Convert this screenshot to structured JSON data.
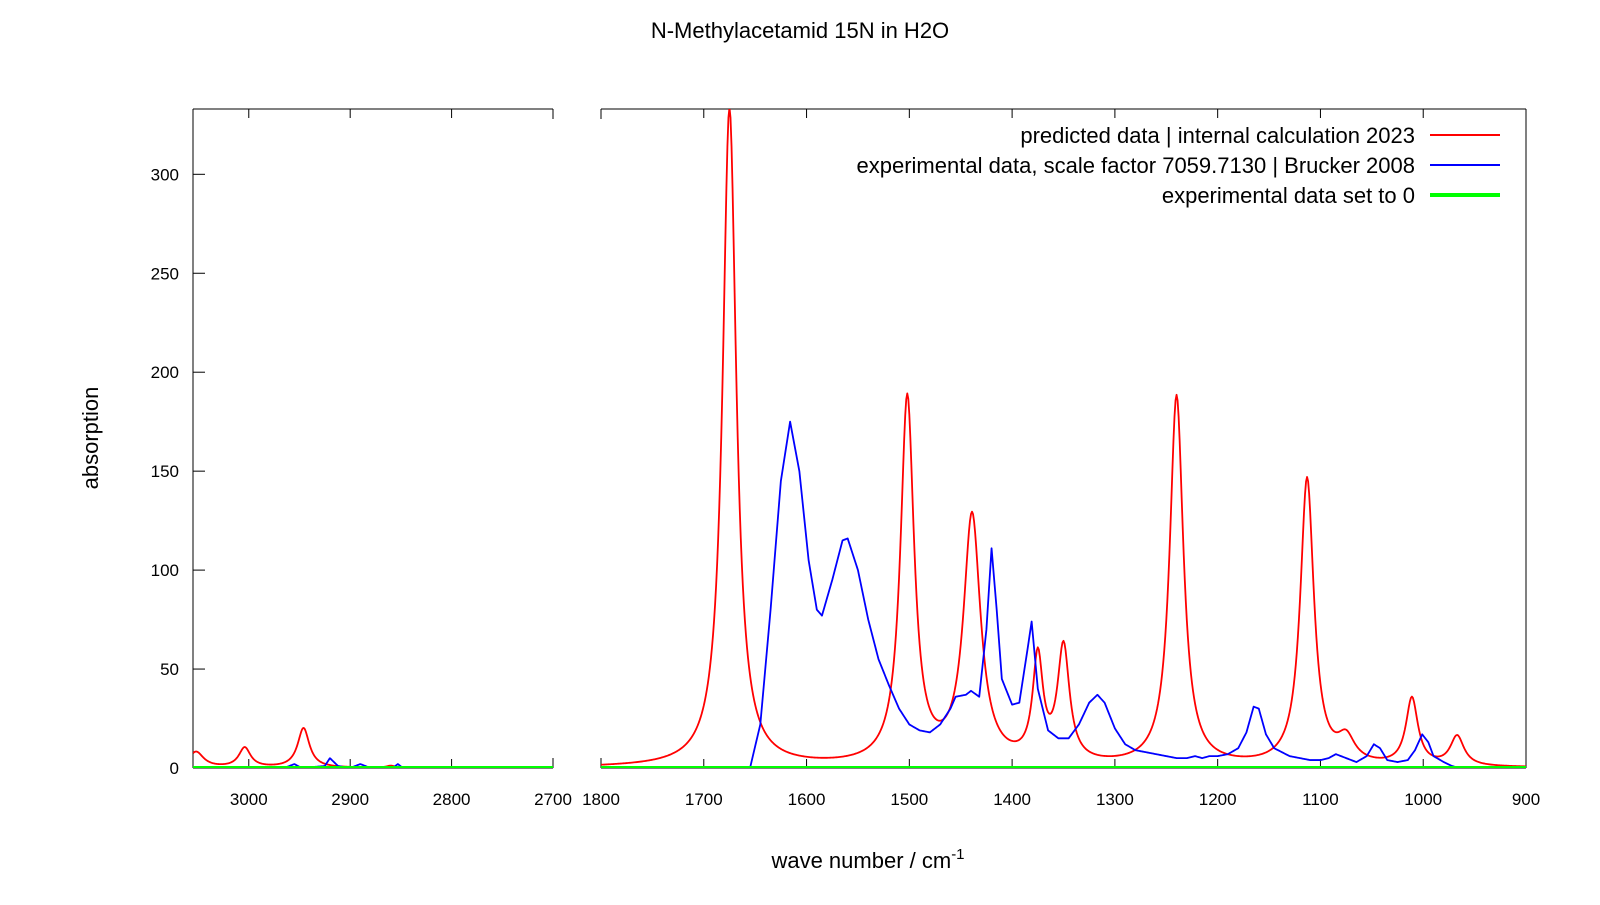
{
  "chart_data": {
    "type": "line",
    "title": "N-Methylacetamid 15N in H2O",
    "xlabel": "wave number / cm",
    "xlabel_superscript": "-1",
    "ylabel": "absorption",
    "x_axis_reversed": true,
    "x_axis_broken": true,
    "panels": [
      {
        "xlim": [
          3055,
          2700
        ],
        "xticks": [
          "3000",
          "2900",
          "2800",
          "2700"
        ]
      },
      {
        "xlim": [
          1800,
          900
        ],
        "xticks": [
          "1800",
          "1700",
          "1600",
          "1500",
          "1400",
          "1300",
          "1200",
          "1100",
          "1000",
          "900"
        ]
      }
    ],
    "ylim": [
      0,
      333
    ],
    "yticks": [
      "0",
      "50",
      "100",
      "150",
      "200",
      "250",
      "300"
    ],
    "grid": false,
    "legend_position": "top-right",
    "series": [
      {
        "name": "predicted data | internal calculation 2023",
        "color": "#ff0000",
        "peaks": [
          {
            "x": 3052,
            "y": 8,
            "w": 9
          },
          {
            "x": 3004,
            "y": 10,
            "w": 7
          },
          {
            "x": 2946,
            "y": 20,
            "w": 7
          },
          {
            "x": 2860,
            "y": 1,
            "w": 5
          },
          {
            "x": 1675,
            "y": 333,
            "w": 8
          },
          {
            "x": 1502,
            "y": 185,
            "w": 8
          },
          {
            "x": 1439,
            "y": 125,
            "w": 10
          },
          {
            "x": 1375,
            "y": 52,
            "w": 6
          },
          {
            "x": 1350,
            "y": 58,
            "w": 7
          },
          {
            "x": 1240,
            "y": 187,
            "w": 8
          },
          {
            "x": 1113,
            "y": 145,
            "w": 8
          },
          {
            "x": 1075,
            "y": 12,
            "w": 10
          },
          {
            "x": 1011,
            "y": 34,
            "w": 7
          },
          {
            "x": 967,
            "y": 15,
            "w": 8
          }
        ]
      },
      {
        "name": "experimental data, scale factor 7059.7130 | Brucker 2008",
        "color": "#0000ff",
        "points": [
          [
            2965,
            0
          ],
          [
            2955,
            2
          ],
          [
            2948,
            0
          ],
          [
            2925,
            1
          ],
          [
            2920,
            5
          ],
          [
            2912,
            1
          ],
          [
            2900,
            0
          ],
          [
            2890,
            2
          ],
          [
            2880,
            0
          ],
          [
            2858,
            0
          ],
          [
            2853,
            2
          ],
          [
            2848,
            0
          ],
          [
            1655,
            0
          ],
          [
            1645,
            22
          ],
          [
            1635,
            80
          ],
          [
            1625,
            145
          ],
          [
            1616,
            175
          ],
          [
            1607,
            150
          ],
          [
            1598,
            105
          ],
          [
            1590,
            80
          ],
          [
            1585,
            77
          ],
          [
            1575,
            95
          ],
          [
            1565,
            115
          ],
          [
            1560,
            116
          ],
          [
            1550,
            100
          ],
          [
            1540,
            75
          ],
          [
            1530,
            55
          ],
          [
            1520,
            42
          ],
          [
            1510,
            30
          ],
          [
            1500,
            22
          ],
          [
            1490,
            19
          ],
          [
            1480,
            18
          ],
          [
            1470,
            22
          ],
          [
            1460,
            30
          ],
          [
            1455,
            36
          ],
          [
            1445,
            37
          ],
          [
            1440,
            39
          ],
          [
            1432,
            36
          ],
          [
            1425,
            70
          ],
          [
            1420,
            111
          ],
          [
            1415,
            80
          ],
          [
            1410,
            45
          ],
          [
            1400,
            32
          ],
          [
            1393,
            33
          ],
          [
            1385,
            60
          ],
          [
            1381,
            74
          ],
          [
            1375,
            40
          ],
          [
            1365,
            19
          ],
          [
            1355,
            15
          ],
          [
            1345,
            15
          ],
          [
            1335,
            22
          ],
          [
            1325,
            33
          ],
          [
            1317,
            37
          ],
          [
            1310,
            33
          ],
          [
            1300,
            20
          ],
          [
            1290,
            12
          ],
          [
            1280,
            9
          ],
          [
            1270,
            8
          ],
          [
            1260,
            7
          ],
          [
            1250,
            6
          ],
          [
            1240,
            5
          ],
          [
            1230,
            5
          ],
          [
            1222,
            6
          ],
          [
            1215,
            5
          ],
          [
            1208,
            6
          ],
          [
            1200,
            6
          ],
          [
            1190,
            7
          ],
          [
            1180,
            10
          ],
          [
            1172,
            18
          ],
          [
            1165,
            31
          ],
          [
            1160,
            30
          ],
          [
            1153,
            17
          ],
          [
            1145,
            10
          ],
          [
            1130,
            6
          ],
          [
            1120,
            5
          ],
          [
            1110,
            4
          ],
          [
            1100,
            4
          ],
          [
            1092,
            5
          ],
          [
            1085,
            7
          ],
          [
            1075,
            5
          ],
          [
            1065,
            3
          ],
          [
            1055,
            6
          ],
          [
            1048,
            12
          ],
          [
            1042,
            10
          ],
          [
            1035,
            4
          ],
          [
            1025,
            3
          ],
          [
            1015,
            4
          ],
          [
            1008,
            9
          ],
          [
            1001,
            17
          ],
          [
            995,
            13
          ],
          [
            990,
            6
          ],
          [
            980,
            3
          ],
          [
            972,
            1
          ],
          [
            965,
            0
          ],
          [
            900,
            0
          ]
        ]
      },
      {
        "name": "experimental data set to 0",
        "color": "#00ff00",
        "constant": 0
      }
    ]
  }
}
